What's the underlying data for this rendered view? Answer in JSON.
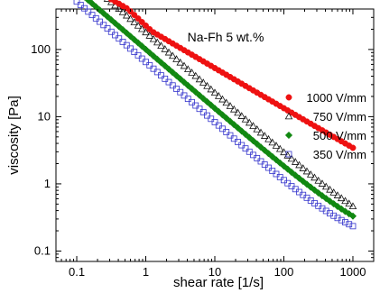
{
  "chart_data": {
    "type": "scatter",
    "annotation": "Na-Fh 5 wt.%",
    "xlabel": "shear rate [1/s]",
    "ylabel": "viscosity [Pa]",
    "xscale": "log",
    "yscale": "log",
    "xlim": [
      0.05,
      2000
    ],
    "ylim": [
      0.07,
      400
    ],
    "xticks": [
      0.1,
      1,
      10,
      100,
      1000
    ],
    "xtick_labels": [
      "0.1",
      "1",
      "10",
      "100",
      "1000"
    ],
    "yticks": [
      0.1,
      1,
      10,
      100
    ],
    "ytick_labels": [
      "0.1",
      "1",
      "10",
      "100"
    ],
    "grid": false,
    "legend_position": "right",
    "series": [
      {
        "name": "1000 V/mm",
        "marker": "filled-circle",
        "color": "#ee1111",
        "x_range": [
          0.1,
          1000
        ],
        "points_per_decade": 18,
        "curve": {
          "A": 280,
          "n": 0.4,
          "kink": 0.55,
          "kink_drop": 0.75,
          "eta_inf": 0.11
        }
      },
      {
        "name": "750 V/mm",
        "marker": "open-triangle",
        "color": "#111111",
        "x_range": [
          0.1,
          1000
        ],
        "points_per_decade": 18,
        "curve": {
          "A": 180,
          "n": 0.1,
          "kink": 0,
          "kink_drop": 1,
          "eta_inf": 0.105
        }
      },
      {
        "name": "500 V/mm",
        "marker": "filled-diamond",
        "color": "#118811",
        "x_range": [
          0.1,
          1000
        ],
        "points_per_decade": 18,
        "curve": {
          "A": 100,
          "n": 0.12,
          "kink": 0,
          "kink_drop": 1,
          "eta_inf": 0.102
        }
      },
      {
        "name": "350 V/mm",
        "marker": "open-square",
        "color": "#3333cc",
        "x_range": [
          0.1,
          1000
        ],
        "points_per_decade": 18,
        "curve": {
          "A": 65,
          "n": 0.1,
          "kink": 0,
          "kink_drop": 1,
          "eta_inf": 0.105
        }
      }
    ]
  }
}
